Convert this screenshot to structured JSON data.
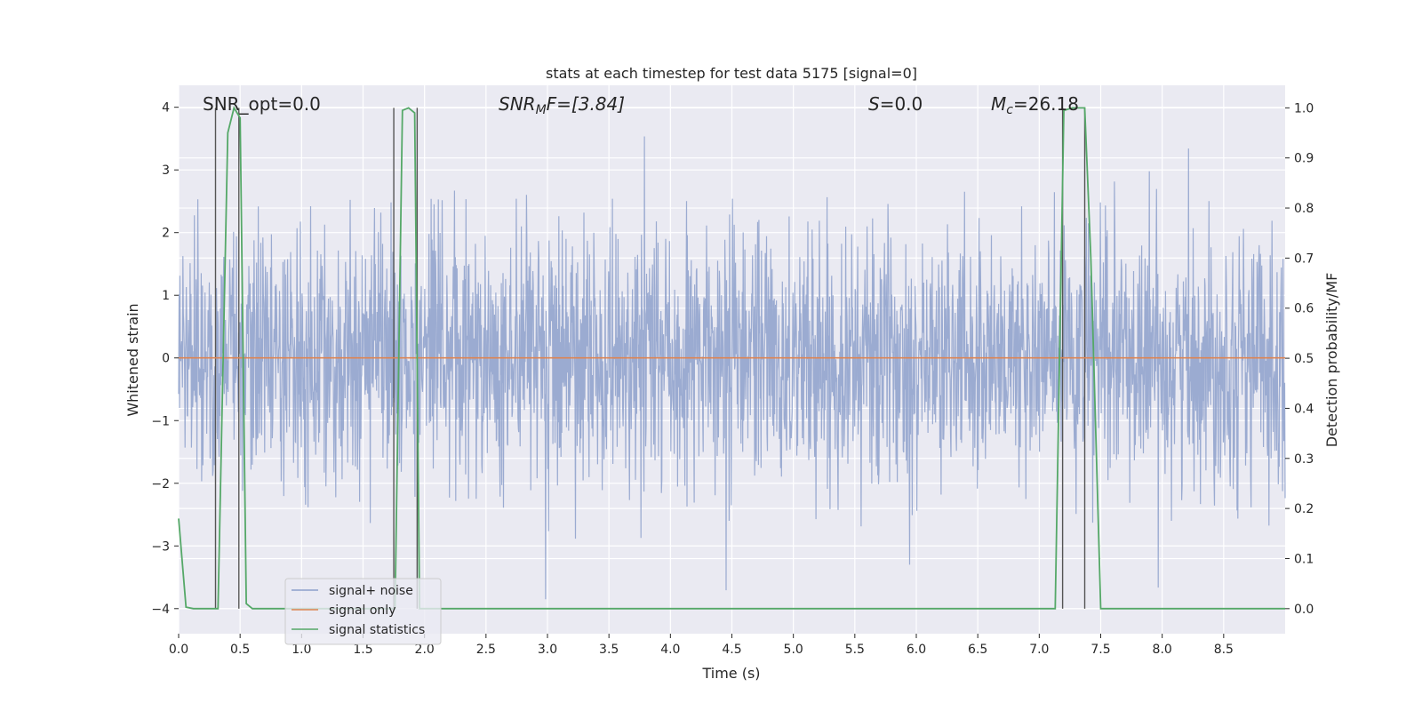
{
  "chart_data": {
    "type": "line",
    "title": "stats at each timestep for test data 5175 [signal=0]",
    "xlabel": "Time (s)",
    "ylabel": "Whitened strain",
    "ylabel_right": "Detection probability/MF",
    "xlim": [
      0,
      9
    ],
    "ylim": [
      -4.4,
      4.35
    ],
    "ylim_right": [
      -0.05,
      1.045
    ],
    "x_ticks": [
      0.0,
      0.5,
      1.0,
      1.5,
      2.0,
      2.5,
      3.0,
      3.5,
      4.0,
      4.5,
      5.0,
      5.5,
      6.0,
      6.5,
      7.0,
      7.5,
      8.0,
      8.5
    ],
    "x_tick_labels": [
      "0.0",
      "0.5",
      "1.0",
      "1.5",
      "2.0",
      "2.5",
      "3.0",
      "3.5",
      "4.0",
      "4.5",
      "5.0",
      "5.5",
      "6.0",
      "6.5",
      "7.0",
      "7.5",
      "8.0",
      "8.5"
    ],
    "y_ticks": [
      -4,
      -3,
      -2,
      -1,
      0,
      1,
      2,
      3,
      4
    ],
    "y_tick_labels": [
      "−4",
      "−3",
      "−2",
      "−1",
      "0",
      "1",
      "2",
      "3",
      "4"
    ],
    "y_right_ticks": [
      0.0,
      0.1,
      0.2,
      0.3,
      0.4,
      0.5,
      0.6,
      0.7,
      0.8,
      0.9,
      1.0
    ],
    "y_right_tick_labels": [
      "0.0",
      "0.1",
      "0.2",
      "0.3",
      "0.4",
      "0.5",
      "0.6",
      "0.7",
      "0.8",
      "0.9",
      "1.0"
    ],
    "grid": true,
    "legend_placement": "lower-left",
    "annotations": {
      "snr_opt": "SNR_opt=0.0",
      "snr_mf_main": "SNR",
      "snr_mf_sub": "M",
      "snr_mf_rest": "F=[3.84]",
      "s_main": "S",
      "s_rest": "=0.0",
      "mc_main": "M",
      "mc_sub": "c",
      "mc_rest": "=26.18"
    },
    "series": [
      {
        "name": "signal+ noise",
        "color": "#8da0cb",
        "axis": "left",
        "kind": "noise",
        "envelope": [
          -3.5,
          3.5
        ],
        "note_values": "approximate Gaussian whitened noise, std ~1"
      },
      {
        "name": "signal only",
        "color": "#dd8452",
        "axis": "left",
        "x": [
          0,
          9
        ],
        "y": [
          0,
          0
        ]
      },
      {
        "name": "signal statistics",
        "color": "#55a868",
        "axis": "right",
        "x": [
          0.0,
          0.06,
          0.12,
          0.3,
          0.32,
          0.4,
          0.45,
          0.5,
          0.55,
          0.6,
          1.74,
          1.76,
          1.82,
          1.87,
          1.92,
          1.96,
          2.05,
          7.13,
          7.2,
          7.27,
          7.37,
          7.42,
          7.5,
          9.0
        ],
        "y": [
          0.18,
          0.003,
          0.0,
          0.0,
          0.0,
          0.95,
          1.0,
          0.98,
          0.01,
          0.0,
          0.0,
          0.0,
          0.995,
          1.0,
          0.99,
          0.0,
          0.0,
          0.0,
          0.995,
          1.0,
          1.0,
          0.7,
          0.0,
          0.0
        ]
      }
    ],
    "vertical_markers": [
      0.3,
      0.49,
      1.75,
      1.94,
      7.19,
      7.37
    ],
    "vertical_marker_color": "#555555"
  }
}
